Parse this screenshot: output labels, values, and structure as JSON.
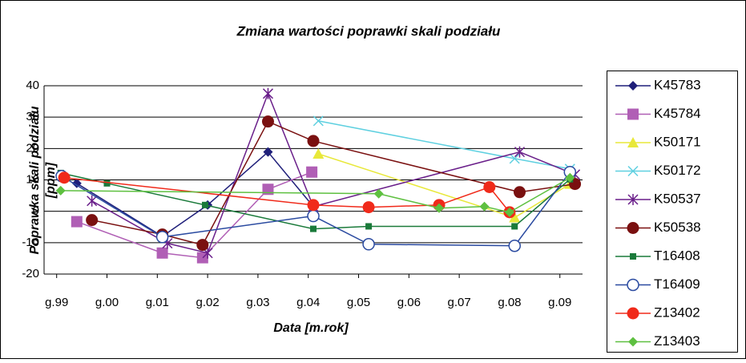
{
  "chart_data": {
    "type": "line",
    "title": "Zmiana wartości poprawki skali podziału",
    "x_label": "Data [m.rok]",
    "y_label": [
      "Poprawka skali podziału",
      "[ppm]"
    ],
    "xlim": [
      -0.25,
      10.45
    ],
    "xticks": [
      {
        "value": 0,
        "label": "g.99"
      },
      {
        "value": 1,
        "label": "g.00"
      },
      {
        "value": 2,
        "label": "g.01"
      },
      {
        "value": 3,
        "label": "g.02"
      },
      {
        "value": 4,
        "label": "g.03"
      },
      {
        "value": 5,
        "label": "g.04"
      },
      {
        "value": 6,
        "label": "g.05"
      },
      {
        "value": 7,
        "label": "g.06"
      },
      {
        "value": 8,
        "label": "g.07"
      },
      {
        "value": 9,
        "label": "g.08"
      },
      {
        "value": 10,
        "label": "g.09"
      }
    ],
    "ylim": [
      -20,
      40
    ],
    "yticks": [
      -20,
      -10,
      0,
      10,
      20,
      30,
      40
    ],
    "grid": true,
    "legend": "right",
    "series": [
      {
        "name": "K45783",
        "color": "#1f1f7a",
        "marker": "diamond",
        "x": [
          0.4,
          2.1,
          3.0,
          4.2,
          5.1
        ],
        "values": [
          8.9,
          -8,
          2,
          18.9,
          1.5
        ]
      },
      {
        "name": "K45784",
        "color": "#b05fb5",
        "marker": "square",
        "x": [
          0.4,
          2.1,
          2.9,
          4.2,
          5.07
        ],
        "values": [
          -3.3,
          -13.3,
          -14.8,
          7,
          12.5
        ]
      },
      {
        "name": "K50171",
        "color": "#e8e83a",
        "marker": "triangle",
        "x": [
          5.2,
          9.1,
          10.2
        ],
        "values": [
          18.3,
          -2,
          8.7
        ]
      },
      {
        "name": "K50172",
        "color": "#5fd0e0",
        "marker": "x",
        "x": [
          5.2,
          9.1,
          10.2
        ],
        "values": [
          28.8,
          16.8,
          13.5
        ]
      },
      {
        "name": "K50537",
        "color": "#6a1f8a",
        "marker": "star",
        "x": [
          0.7,
          2.2,
          3.0,
          4.2,
          5.1,
          9.2,
          10.3
        ],
        "values": [
          3.3,
          -10.2,
          -13.3,
          37.5,
          1.5,
          18.9,
          11.7
        ]
      },
      {
        "name": "K50538",
        "color": "#7a1010",
        "marker": "circle",
        "x": [
          0.7,
          2.1,
          2.9,
          4.2,
          5.1,
          9.2,
          10.3
        ],
        "values": [
          -2.8,
          -7.4,
          -10.7,
          28.6,
          22.4,
          6.1,
          8.7
        ]
      },
      {
        "name": "T16408",
        "color": "#1a7a3a",
        "marker": "smallsquare",
        "x": [
          0.08,
          1.0,
          2.95,
          5.1,
          6.2,
          9.1,
          10.2
        ],
        "values": [
          12.2,
          8.9,
          2,
          -5.6,
          -4.8,
          -4.8,
          10.2
        ]
      },
      {
        "name": "T16409",
        "color": "#2a4aa0",
        "marker": "opencircle",
        "x": [
          0.1,
          2.1,
          5.1,
          6.2,
          9.1,
          10.2
        ],
        "values": [
          11.2,
          -8.2,
          -1.5,
          -10.5,
          -11,
          12.5
        ]
      },
      {
        "name": "Z13402",
        "color": "#f02a1a",
        "marker": "circle",
        "x": [
          0.15,
          5.1,
          6.2,
          7.6,
          8.6,
          9.0
        ],
        "values": [
          10.7,
          2,
          1.3,
          2,
          7.7,
          -0.3
        ]
      },
      {
        "name": "Z13403",
        "color": "#5ec040",
        "marker": "diamond",
        "x": [
          0.08,
          6.4,
          7.6,
          8.5,
          9.0,
          10.2
        ],
        "values": [
          6.6,
          5.6,
          1,
          1.5,
          -0.3,
          10.7
        ]
      }
    ]
  }
}
